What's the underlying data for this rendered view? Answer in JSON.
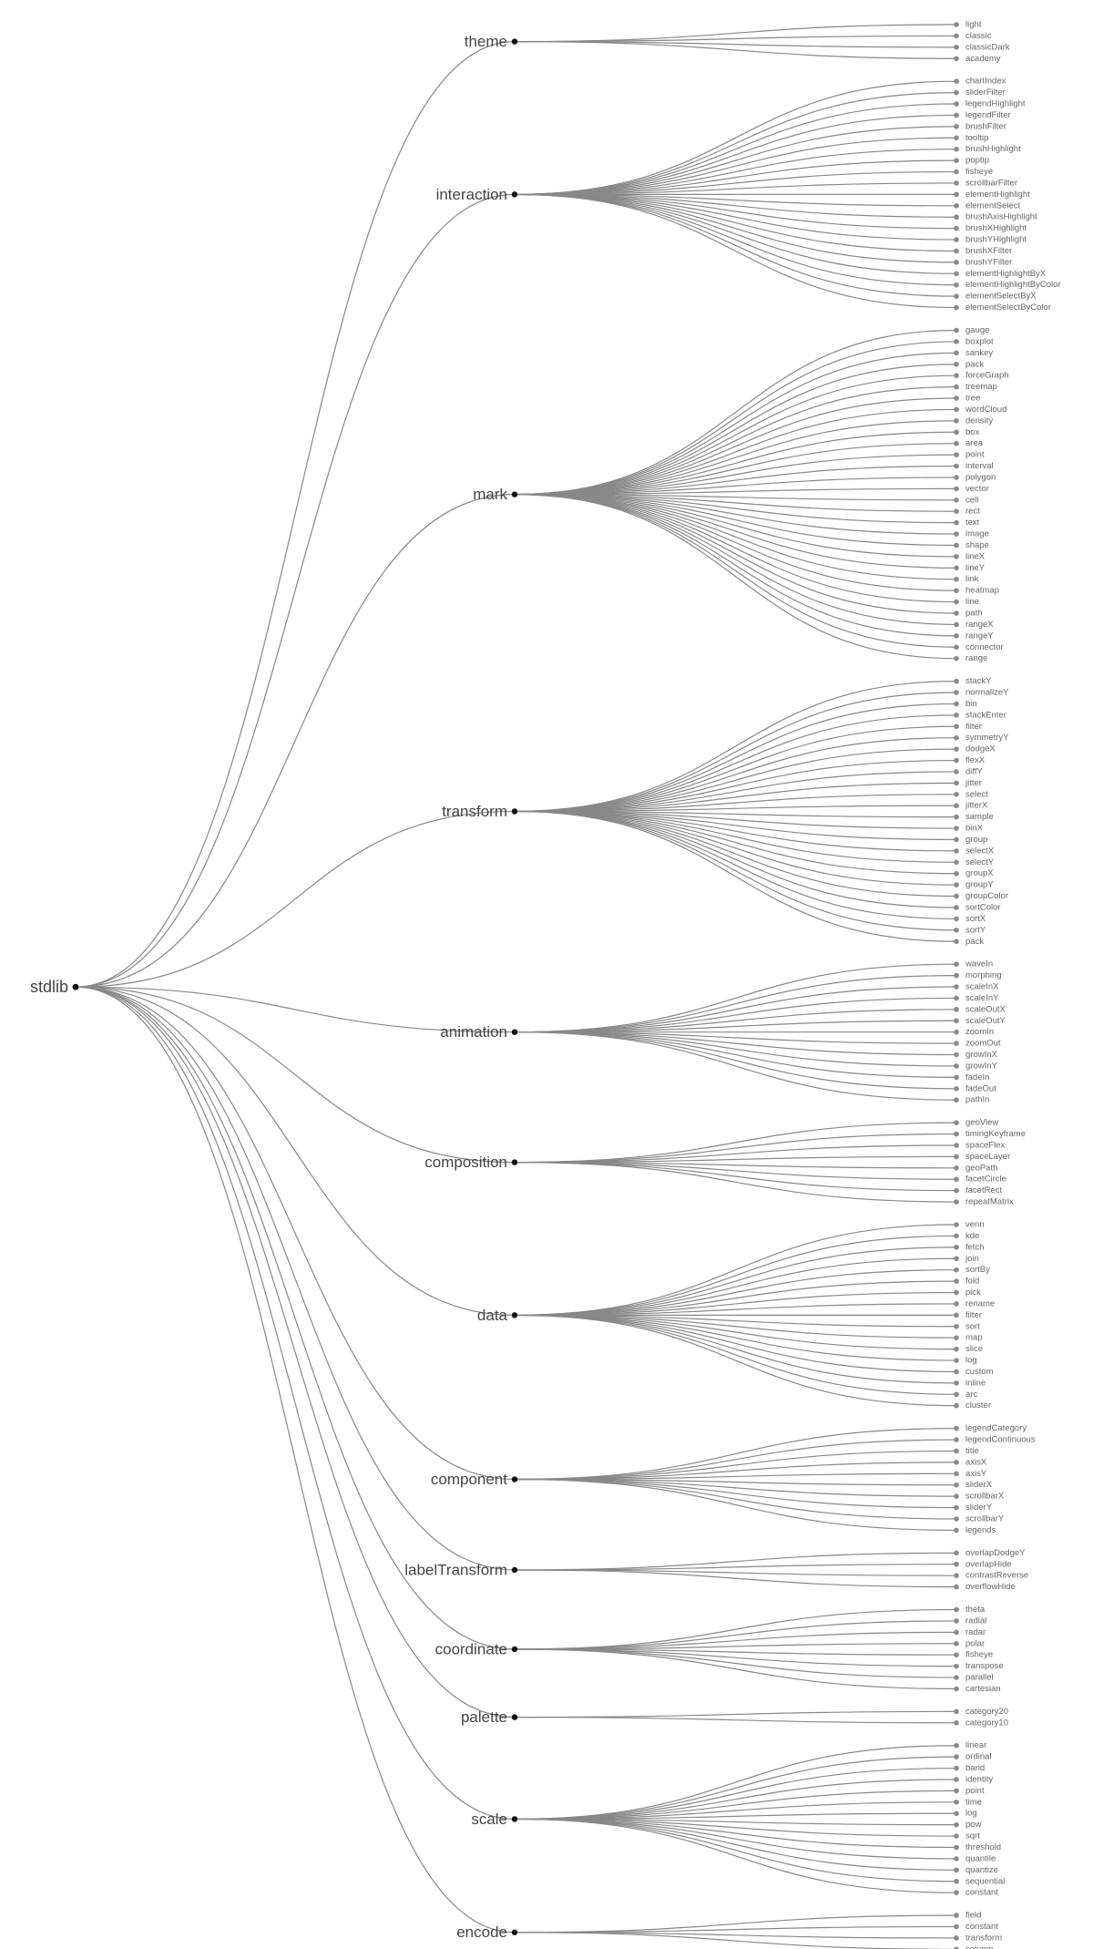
{
  "diagram": {
    "type": "tree",
    "colors": {
      "link": "#888888",
      "node": "#111111",
      "leaf_dot": "#8a8a8a",
      "label": "#444444",
      "leaf_label": "#666666"
    },
    "root": {
      "label": "stdlib",
      "children": [
        {
          "label": "theme",
          "children": [
            "light",
            "classic",
            "classicDark",
            "academy"
          ]
        },
        {
          "label": "interaction",
          "children": [
            "chartIndex",
            "sliderFilter",
            "legendHighlight",
            "legendFilter",
            "brushFilter",
            "tooltip",
            "brushHighlight",
            "poptip",
            "fisheye",
            "scrollbarFilter",
            "elementHighlight",
            "elementSelect",
            "brushAxisHighlight",
            "brushXHighlight",
            "brushYHighlight",
            "brushXFilter",
            "brushYFilter",
            "elementHighlightByX",
            "elementHighlightByColor",
            "elementSelectByX",
            "elementSelectByColor"
          ]
        },
        {
          "label": "mark",
          "children": [
            "gauge",
            "boxplot",
            "sankey",
            "pack",
            "forceGraph",
            "treemap",
            "tree",
            "wordCloud",
            "density",
            "box",
            "area",
            "point",
            "interval",
            "polygon",
            "vector",
            "cell",
            "rect",
            "text",
            "image",
            "shape",
            "lineX",
            "lineY",
            "link",
            "heatmap",
            "line",
            "path",
            "rangeX",
            "rangeY",
            "connector",
            "range"
          ]
        },
        {
          "label": "transform",
          "children": [
            "stackY",
            "normalizeY",
            "bin",
            "stackEnter",
            "filter",
            "symmetryY",
            "dodgeX",
            "flexX",
            "diffY",
            "jitter",
            "select",
            "jitterX",
            "sample",
            "binX",
            "group",
            "selectX",
            "selectY",
            "groupX",
            "groupY",
            "groupColor",
            "sortColor",
            "sortX",
            "sortY",
            "pack"
          ]
        },
        {
          "label": "animation",
          "children": [
            "waveIn",
            "morphing",
            "scaleInX",
            "scaleInY",
            "scaleOutX",
            "scaleOutY",
            "zoomIn",
            "zoomOut",
            "growInX",
            "growInY",
            "fadeIn",
            "fadeOut",
            "pathIn"
          ]
        },
        {
          "label": "composition",
          "children": [
            "geoView",
            "timingKeyframe",
            "spaceFlex",
            "spaceLayer",
            "geoPath",
            "facetCircle",
            "facetRect",
            "repeatMatrix"
          ]
        },
        {
          "label": "data",
          "children": [
            "venn",
            "kde",
            "fetch",
            "join",
            "sortBy",
            "fold",
            "pick",
            "rename",
            "filter",
            "sort",
            "map",
            "slice",
            "log",
            "custom",
            "inline",
            "arc",
            "cluster"
          ]
        },
        {
          "label": "component",
          "children": [
            "legendCategory",
            "legendContinuous",
            "title",
            "axisX",
            "axisY",
            "sliderX",
            "scrollbarX",
            "sliderY",
            "scrollbarY",
            "legends"
          ]
        },
        {
          "label": "labelTransform",
          "children": [
            "overlapDodgeY",
            "overlapHide",
            "contrastReverse",
            "overflowHide"
          ]
        },
        {
          "label": "coordinate",
          "children": [
            "theta",
            "radial",
            "radar",
            "polar",
            "fisheye",
            "transpose",
            "parallel",
            "cartesian"
          ]
        },
        {
          "label": "palette",
          "children": [
            "category20",
            "category10"
          ]
        },
        {
          "label": "scale",
          "children": [
            "linear",
            "ordinal",
            "band",
            "identity",
            "point",
            "time",
            "log",
            "pow",
            "sqrt",
            "threshold",
            "quantile",
            "quantize",
            "sequential",
            "constant"
          ]
        },
        {
          "label": "encode",
          "children": [
            "field",
            "constant",
            "transform",
            "column"
          ]
        }
      ]
    }
  }
}
